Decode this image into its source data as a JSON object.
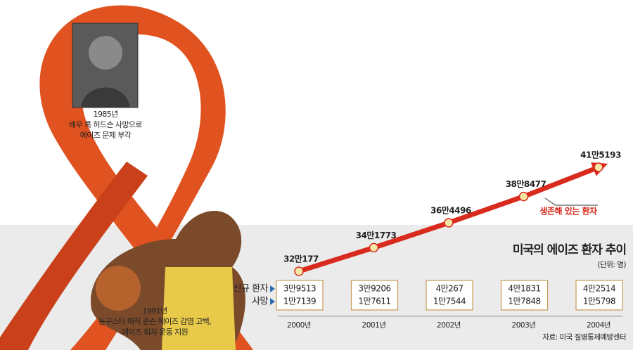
{
  "chart_data": {
    "type": "line",
    "title": "미국의 에이즈 환자 추이",
    "unit": "(단위: 명)",
    "source": "자료: 미국 질병통제예방센터",
    "categories": [
      "2000년",
      "2001년",
      "2002년",
      "2003년",
      "2004년"
    ],
    "series": [
      {
        "name": "생존해 있는 환자",
        "color": "#d92a1e",
        "values": [
          320177,
          341773,
          364496,
          388477,
          415193
        ],
        "value_labels": [
          "32만177",
          "34만1773",
          "36만4496",
          "38만8477",
          "41만5193"
        ]
      }
    ],
    "table": [
      {
        "name": "신규 환자",
        "values": [
          39513,
          39206,
          40267,
          41831,
          42514
        ],
        "value_labels": [
          "3만9513",
          "3만9206",
          "4만267",
          "4만1831",
          "4만2514"
        ]
      },
      {
        "name": "사망",
        "values": [
          17139,
          17611,
          17544,
          17848,
          15798
        ],
        "value_labels": [
          "1만7139",
          "1만7611",
          "1만7544",
          "1만7848",
          "1만5798"
        ]
      }
    ],
    "notes": [
      [
        "1985년",
        "배우 록 허드슨 사망으로",
        "에이즈 문제 부각"
      ],
      [
        "1991년",
        "농구스타 매직 존슨 에이즈 감염 고백,",
        "에이즈 퇴치 운동 지원"
      ]
    ]
  }
}
